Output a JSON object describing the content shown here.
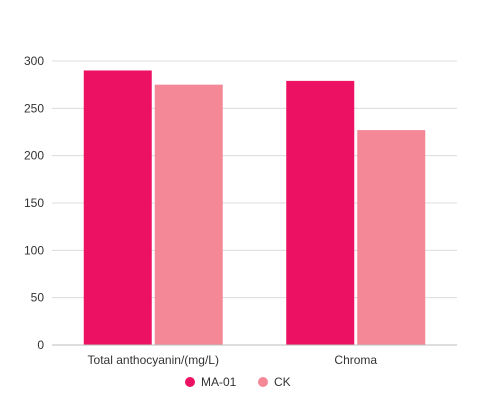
{
  "chart_data": {
    "type": "bar",
    "categories": [
      "Total anthocyanin/(mg/L)",
      "Chroma"
    ],
    "series": [
      {
        "name": "MA-01",
        "values": [
          290,
          279
        ],
        "color": "#ec1163"
      },
      {
        "name": "CK",
        "values": [
          275,
          227
        ],
        "color": "#f48896"
      }
    ],
    "ylim": [
      0,
      300
    ],
    "yticks": [
      0,
      50,
      100,
      150,
      200,
      250,
      300
    ],
    "grid": true,
    "legend_position": "bottom"
  }
}
